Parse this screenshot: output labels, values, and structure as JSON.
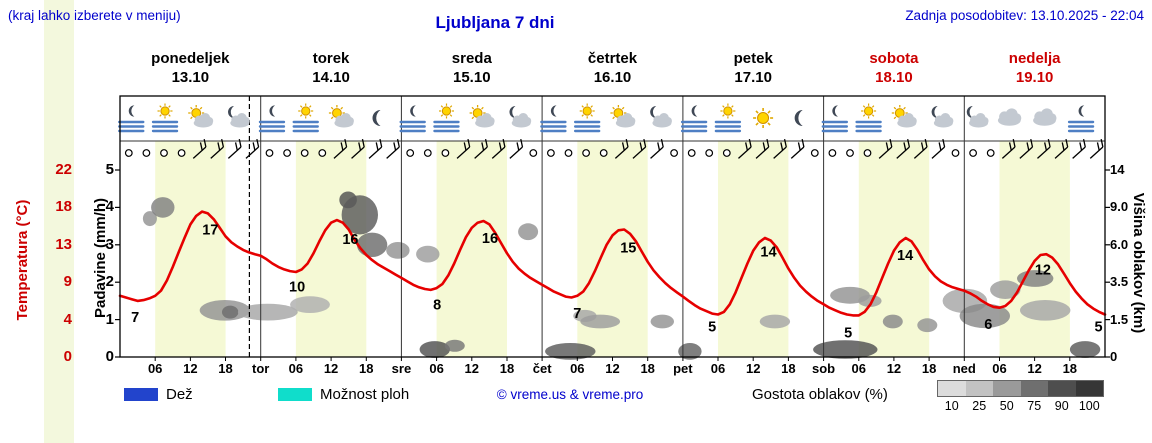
{
  "header": {
    "hint": "(kraj lahko izberete v meniju)",
    "title": "Ljubljana 7 dni",
    "updated": "Zadnja posodobitev: 13.10.2025 - 22:04"
  },
  "days": [
    {
      "name": "ponedeljek",
      "date": "13.10",
      "weekend": false
    },
    {
      "name": "torek",
      "date": "14.10",
      "weekend": false
    },
    {
      "name": "sreda",
      "date": "15.10",
      "weekend": false
    },
    {
      "name": "četrtek",
      "date": "16.10",
      "weekend": false
    },
    {
      "name": "petek",
      "date": "17.10",
      "weekend": false
    },
    {
      "name": "sobota",
      "date": "18.10",
      "weekend": true
    },
    {
      "name": "nedelja",
      "date": "19.10",
      "weekend": true
    }
  ],
  "axes": {
    "temp_label": "Temperatura (°C)",
    "precip_label": "Padavine (mm/h)",
    "cloud_label": "Višina oblakov (km)",
    "temp_ticks": [
      "22",
      "18",
      "13",
      "9",
      "4",
      "0"
    ],
    "precip_ticks": [
      "5",
      "4",
      "3",
      "2",
      "1",
      "0"
    ],
    "cloud_ticks": [
      "14",
      "9.0",
      "6.0",
      "3.5",
      "1.5",
      "0"
    ]
  },
  "x_axis": {
    "hours": [
      "06",
      "12",
      "18"
    ],
    "day_abbrevs": [
      "tor",
      "sre",
      "čet",
      "pet",
      "sob",
      "ned"
    ]
  },
  "icons": [
    [
      "fog-moon",
      "fog-sun",
      "sun-cloud",
      "moon-cloud"
    ],
    [
      "fog-moon",
      "fog-sun",
      "sun-cloud",
      "moon"
    ],
    [
      "fog-moon",
      "fog-sun",
      "sun-cloud",
      "moon-cloud"
    ],
    [
      "fog-moon",
      "fog-sun",
      "sun-cloud",
      "moon-cloud"
    ],
    [
      "fog-moon",
      "fog-sun",
      "sun",
      "moon"
    ],
    [
      "fog-moon",
      "fog-sun",
      "sun-cloud",
      "moon-cloud"
    ],
    [
      "moon-cloud",
      "cloud",
      "cloud",
      "fog-moon"
    ]
  ],
  "wind": [
    [
      "c",
      "c",
      "c",
      "c",
      "b",
      "b",
      "b",
      "b"
    ],
    [
      "c",
      "c",
      "c",
      "c",
      "b",
      "b",
      "b",
      "b"
    ],
    [
      "c",
      "c",
      "c",
      "b",
      "b",
      "b",
      "b",
      "c"
    ],
    [
      "c",
      "c",
      "c",
      "c",
      "b",
      "b",
      "b",
      "c"
    ],
    [
      "c",
      "c",
      "c",
      "b",
      "b",
      "b",
      "b",
      "c"
    ],
    [
      "c",
      "c",
      "c",
      "b",
      "b",
      "b",
      "b",
      "c"
    ],
    [
      "c",
      "c",
      "b",
      "b",
      "b",
      "b",
      "b",
      "b"
    ]
  ],
  "legend": {
    "rain": "Dež",
    "showers": "Možnost ploh",
    "copyright": "© vreme.us & vreme.pro",
    "cloud_density": "Gostota oblakov (%)",
    "cloud_scale_labels": [
      "10",
      "25",
      "50",
      "75",
      "90",
      "100"
    ]
  },
  "colors": {
    "accent_blue": "#0000cc",
    "red": "#cc0000",
    "curve_red": "#e60000",
    "day_band": "#f5f9d5",
    "rain_swatch": "#2244cc",
    "showers_swatch": "#10ddcb",
    "fog_line": "#4e7fc4",
    "cloud_scale": [
      "#dcdcdc",
      "#c2c2c2",
      "#9a9a9a",
      "#6f6f6f",
      "#4e4e4e",
      "#363636"
    ]
  },
  "chart_data": {
    "type": "line",
    "title": "Ljubljana 7 dni",
    "x_hours_range": [
      0,
      168
    ],
    "temp_axis_c": [
      0,
      22
    ],
    "precip_axis_mmh": [
      0,
      5
    ],
    "cloud_axis_km": [
      0,
      1.5,
      3.5,
      6.0,
      9.0,
      14
    ],
    "day_band_hours": [
      6,
      18
    ],
    "now_hour": 22.07,
    "temp_series": {
      "name": "Temperatura",
      "unit": "°C",
      "step_hours": 1,
      "values": [
        7.2,
        7.0,
        6.8,
        6.6,
        6.7,
        6.9,
        7.2,
        7.8,
        9.0,
        10.6,
        12.3,
        14.0,
        15.6,
        16.6,
        17.1,
        16.9,
        16.2,
        15.2,
        14.2,
        13.5,
        13.0,
        12.6,
        12.3,
        12.1,
        11.9,
        11.5,
        11.0,
        10.6,
        10.3,
        10.1,
        10.0,
        10.3,
        11.0,
        12.2,
        13.6,
        14.9,
        15.8,
        16.1,
        15.8,
        15.0,
        13.8,
        12.8,
        12.0,
        11.4,
        10.9,
        10.5,
        10.1,
        9.7,
        9.3,
        8.9,
        8.5,
        8.2,
        8.0,
        7.9,
        8.1,
        8.6,
        9.6,
        11.0,
        12.6,
        14.1,
        15.2,
        15.8,
        16.0,
        15.6,
        14.6,
        13.4,
        12.2,
        11.2,
        10.4,
        9.8,
        9.3,
        8.9,
        8.5,
        8.1,
        7.7,
        7.4,
        7.1,
        7.0,
        7.2,
        7.7,
        8.7,
        10.1,
        11.7,
        13.2,
        14.3,
        14.9,
        15.0,
        14.5,
        13.6,
        12.4,
        11.2,
        10.2,
        9.4,
        8.7,
        8.1,
        7.6,
        7.1,
        6.6,
        6.1,
        5.7,
        5.4,
        5.1,
        5.0,
        5.3,
        6.2,
        7.6,
        9.3,
        11.0,
        12.5,
        13.5,
        14.0,
        13.7,
        12.9,
        11.7,
        10.4,
        9.3,
        8.4,
        7.7,
        7.1,
        6.6,
        6.2,
        5.8,
        5.5,
        5.2,
        5.0,
        4.9,
        4.9,
        5.3,
        6.2,
        7.6,
        9.3,
        11.0,
        12.5,
        13.5,
        14.0,
        13.6,
        12.6,
        11.4,
        10.3,
        9.5,
        8.9,
        8.5,
        8.2,
        8.0,
        7.8,
        7.5,
        7.1,
        6.6,
        6.2,
        5.9,
        5.8,
        6.0,
        6.6,
        7.6,
        8.9,
        10.2,
        11.3,
        12.0,
        12.1,
        11.7,
        10.9,
        9.8,
        8.7,
        7.7,
        6.9,
        6.2,
        5.7,
        5.3,
        5.0
      ]
    },
    "temp_labels": [
      {
        "text": "7",
        "hour": 2.6,
        "temp": 4.7
      },
      {
        "text": "17",
        "hour": 15.4,
        "temp": 15.0
      },
      {
        "text": "10",
        "hour": 30.2,
        "temp": 8.3
      },
      {
        "text": "16",
        "hour": 39.3,
        "temp": 13.9
      },
      {
        "text": "8",
        "hour": 54.1,
        "temp": 6.2
      },
      {
        "text": "16",
        "hour": 63.1,
        "temp": 14.0
      },
      {
        "text": "7",
        "hour": 78.0,
        "temp": 5.2
      },
      {
        "text": "15",
        "hour": 86.7,
        "temp": 12.9
      },
      {
        "text": "5",
        "hour": 101.0,
        "temp": 3.6
      },
      {
        "text": "14",
        "hour": 110.6,
        "temp": 12.4
      },
      {
        "text": "5",
        "hour": 124.2,
        "temp": 2.9
      },
      {
        "text": "14",
        "hour": 133.9,
        "temp": 12.0
      },
      {
        "text": "6",
        "hour": 148.1,
        "temp": 3.9
      },
      {
        "text": "12",
        "hour": 157.4,
        "temp": 10.3
      },
      {
        "text": "5",
        "hour": 166.9,
        "temp": 3.6
      }
    ],
    "clouds": [
      [
        5.1,
        0.74,
        1.2,
        0.04,
        45
      ],
      [
        7.3,
        0.8,
        2.0,
        0.055,
        55
      ],
      [
        17.9,
        0.25,
        4.3,
        0.055,
        45
      ],
      [
        18.8,
        0.24,
        1.4,
        0.035,
        65
      ],
      [
        25.2,
        0.24,
        5.1,
        0.045,
        35
      ],
      [
        32.4,
        0.28,
        3.4,
        0.045,
        30
      ],
      [
        38.9,
        0.84,
        1.5,
        0.045,
        80
      ],
      [
        40.9,
        0.76,
        3.1,
        0.105,
        75
      ],
      [
        43.0,
        0.6,
        2.6,
        0.065,
        65
      ],
      [
        47.4,
        0.57,
        2.0,
        0.045,
        45
      ],
      [
        52.5,
        0.55,
        2.0,
        0.045,
        40
      ],
      [
        53.7,
        0.04,
        2.6,
        0.045,
        80
      ],
      [
        57.1,
        0.06,
        1.7,
        0.032,
        60
      ],
      [
        69.6,
        0.67,
        1.7,
        0.045,
        45
      ],
      [
        76.8,
        0.03,
        4.3,
        0.045,
        75
      ],
      [
        79.3,
        0.22,
        2.0,
        0.032,
        35
      ],
      [
        81.9,
        0.19,
        3.4,
        0.037,
        40
      ],
      [
        92.5,
        0.19,
        2.0,
        0.037,
        45
      ],
      [
        97.2,
        0.03,
        2.0,
        0.045,
        70
      ],
      [
        111.7,
        0.19,
        2.6,
        0.037,
        35
      ],
      [
        123.7,
        0.04,
        5.5,
        0.05,
        80
      ],
      [
        124.5,
        0.33,
        3.4,
        0.045,
        45
      ],
      [
        127.9,
        0.3,
        2.0,
        0.032,
        40
      ],
      [
        131.8,
        0.19,
        1.7,
        0.037,
        50
      ],
      [
        137.7,
        0.17,
        1.7,
        0.037,
        45
      ],
      [
        144.1,
        0.3,
        3.8,
        0.065,
        35
      ],
      [
        147.5,
        0.22,
        4.3,
        0.065,
        50
      ],
      [
        151.0,
        0.36,
        2.6,
        0.05,
        40
      ],
      [
        156.1,
        0.42,
        3.1,
        0.045,
        55
      ],
      [
        157.8,
        0.25,
        4.3,
        0.055,
        35
      ],
      [
        164.6,
        0.04,
        2.6,
        0.045,
        75
      ]
    ]
  }
}
